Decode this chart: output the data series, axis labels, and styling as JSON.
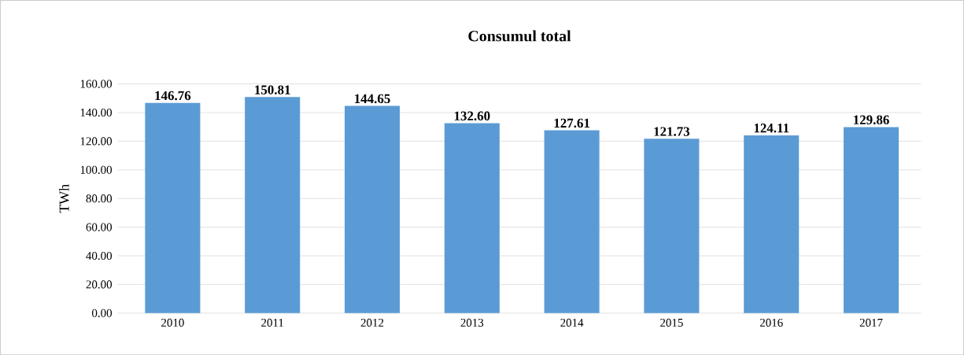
{
  "chart_data": {
    "type": "bar",
    "title": "Consumul total",
    "ylabel": "TWh",
    "categories": [
      "2010",
      "2011",
      "2012",
      "2013",
      "2014",
      "2015",
      "2016",
      "2017"
    ],
    "values": [
      146.76,
      150.81,
      144.65,
      132.6,
      127.61,
      121.73,
      124.11,
      129.86
    ],
    "value_labels": [
      "146.76",
      "150.81",
      "144.65",
      "132.60",
      "127.61",
      "121.73",
      "124.11",
      "129.86"
    ],
    "color": "#5b9bd5",
    "ylim": [
      0,
      160
    ],
    "yticks": [
      {
        "value": 0,
        "label": "0.00"
      },
      {
        "value": 20,
        "label": "20.00"
      },
      {
        "value": 40,
        "label": "40.00"
      },
      {
        "value": 60,
        "label": "60.00"
      },
      {
        "value": 80,
        "label": "80.00"
      },
      {
        "value": 100,
        "label": "100.00"
      },
      {
        "value": 120,
        "label": "120.00"
      },
      {
        "value": 140,
        "label": "140.00"
      },
      {
        "value": 160,
        "label": "160.00"
      }
    ],
    "grid": "y"
  }
}
